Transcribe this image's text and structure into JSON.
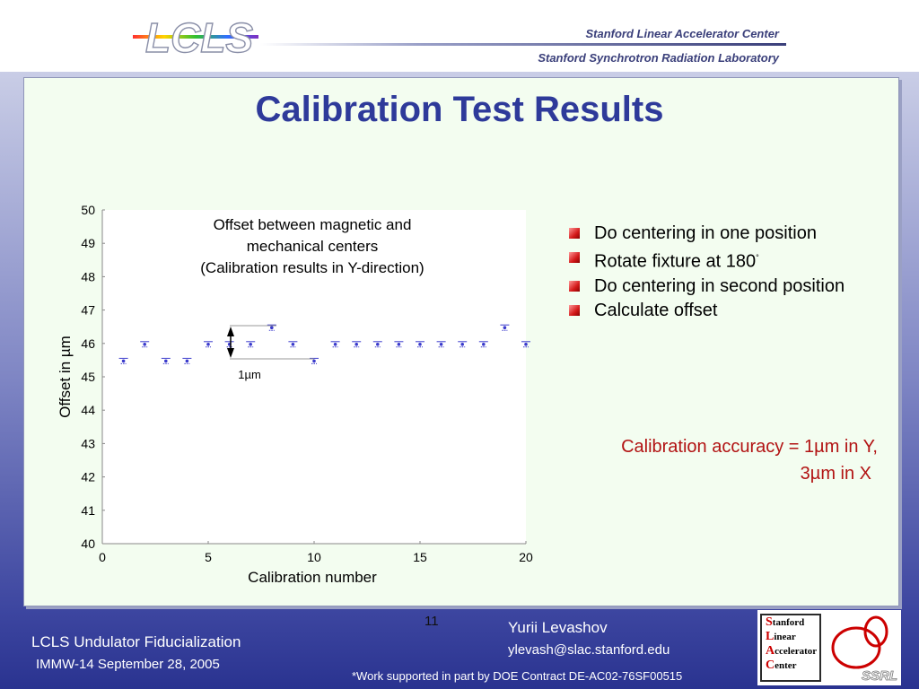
{
  "header": {
    "logo_text": "LCLS",
    "org_line1": "Stanford Linear Accelerator Center",
    "org_line2": "Stanford Synchrotron Radiation Laboratory"
  },
  "slide": {
    "title": "Calibration Test Results",
    "bullets": [
      "Do centering in one position",
      "Rotate fixture at 180",
      "Do centering in second position",
      "Calculate offset"
    ],
    "degree_mark": "°",
    "accuracy_line1": "Calibration accuracy = 1µm in Y,",
    "accuracy_line2": "3µm in X"
  },
  "chart_data": {
    "type": "scatter",
    "title_lines": [
      "Offset between magnetic and",
      "mechanical centers",
      "(Calibration results in Y-direction)"
    ],
    "xlabel": "Calibration number",
    "ylabel": "Offset in µm",
    "xlim": [
      0,
      20
    ],
    "ylim": [
      40,
      50
    ],
    "xticks": [
      0,
      5,
      10,
      15,
      20
    ],
    "yticks": [
      40,
      41,
      42,
      43,
      44,
      45,
      46,
      47,
      48,
      49,
      50
    ],
    "x": [
      1,
      2,
      3,
      4,
      5,
      6,
      7,
      8,
      9,
      10,
      11,
      12,
      13,
      14,
      15,
      16,
      17,
      18,
      19,
      20
    ],
    "y": [
      45.5,
      46,
      45.5,
      45.5,
      46,
      46,
      46,
      46.5,
      46,
      45.5,
      46,
      46,
      46,
      46,
      46,
      46,
      46,
      46,
      46.5,
      46
    ],
    "annotation": "1µm",
    "marker_color": "#3a3acc"
  },
  "footer": {
    "project": "LCLS Undulator Fiducialization",
    "meeting": "IMMW-14  September 28, 2005",
    "page_number": "11",
    "author": "Yurii Levashov",
    "email": "ylevash@slac.stanford.edu",
    "support_note": "*Work supported in part by DOE Contract DE-AC02-76SF00515"
  },
  "badge": {
    "letters": [
      "S",
      "L",
      "A",
      "C"
    ],
    "words": [
      "tanford",
      "inear",
      "ccelerator",
      "enter"
    ],
    "ssrl_text": "SSRL"
  }
}
